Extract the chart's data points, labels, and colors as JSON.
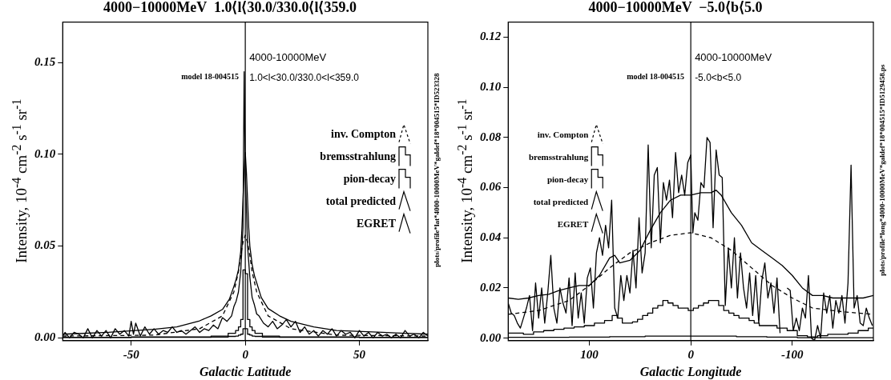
{
  "chart_data": [
    {
      "type": "line",
      "title": "4000−10000MeV  1.0⟨l⟨30.0/330.0⟨l⟨359.0",
      "xlabel": "Galactic Latitude",
      "ylabel": "Intensity, 10$^{-4}$ cm$^{-2}$ s$^{-1}$ sr$^{-1}$",
      "xlim": [
        -80,
        80
      ],
      "xticks": [
        -50,
        0,
        50
      ],
      "ylim": [
        -0.0015,
        0.172
      ],
      "yticks": [
        {
          "value": 0,
          "label": "0.00"
        },
        {
          "value": 0.05,
          "label": "0.05"
        },
        {
          "value": 0.1,
          "label": "0.10"
        },
        {
          "value": 0.15,
          "label": "0.15"
        }
      ],
      "grid": false,
      "legend": "right",
      "marker": "none",
      "ref_lines": [
        {
          "axis": "x",
          "value": 0,
          "label": null
        }
      ],
      "annotations": [
        "4000-10000MeV",
        "1.0<l<30.0/330.0<l<359.0",
        "model 18-004515",
        "plots/profile*lat*4000-10000MeV*galdef*18*004515*ID523328"
      ],
      "series": [
        {
          "name": "inv. Compton",
          "type": "line",
          "line_style": "dashed",
          "color": "#000000",
          "x": [
            -80,
            -40,
            -20,
            -10,
            -5,
            -3,
            -2,
            -1,
            0,
            1,
            2,
            3,
            5,
            10,
            20,
            40,
            80
          ],
          "values": [
            0.001,
            0.0015,
            0.005,
            0.012,
            0.025,
            0.036,
            0.045,
            0.052,
            0.056,
            0.052,
            0.045,
            0.036,
            0.025,
            0.012,
            0.005,
            0.0015,
            0.001
          ]
        },
        {
          "name": "bremsstrahlung",
          "type": "step",
          "color": "#000000",
          "x": [
            -80,
            -20,
            -10,
            -5,
            -3.5,
            -2.5,
            -1.5,
            -0.5,
            0.5,
            1.5,
            2.5,
            3.5,
            5,
            10,
            20,
            80
          ],
          "values": [
            0.0002,
            0.0003,
            0.0004,
            0.0008,
            0.001,
            0.0015,
            0.002,
            0.005,
            0.005,
            0.002,
            0.0015,
            0.001,
            0.0008,
            0.0004,
            0.0003,
            0.0002
          ]
        },
        {
          "name": "pion-decay",
          "type": "step",
          "color": "#000000",
          "x": [
            -80,
            -20,
            -10,
            -5,
            -3.5,
            -2.5,
            -1.5,
            -0.5,
            0.5,
            1.5,
            2.5,
            3.5,
            5,
            10,
            20,
            80
          ],
          "values": [
            0.0003,
            0.0005,
            0.001,
            0.0025,
            0.004,
            0.006,
            0.01,
            0.037,
            0.035,
            0.01,
            0.006,
            0.004,
            0.0025,
            0.001,
            0.0005,
            0.0003
          ]
        },
        {
          "name": "total predicted",
          "type": "line",
          "color": "#000000",
          "x": [
            -80,
            -60,
            -40,
            -30,
            -20,
            -15,
            -10,
            -7,
            -5,
            -4,
            -3,
            -2,
            -1.5,
            -1,
            -0.5,
            0,
            0.5,
            1,
            1.5,
            2,
            3,
            4,
            5,
            7,
            10,
            15,
            20,
            30,
            40,
            60,
            80
          ],
          "values": [
            0.002,
            0.003,
            0.0047,
            0.006,
            0.0093,
            0.012,
            0.0155,
            0.021,
            0.028,
            0.032,
            0.037,
            0.047,
            0.059,
            0.075,
            0.092,
            0.101,
            0.09,
            0.075,
            0.06,
            0.05,
            0.04,
            0.034,
            0.03,
            0.022,
            0.016,
            0.012,
            0.009,
            0.006,
            0.004,
            0.003,
            0.002
          ]
        },
        {
          "name": "EGRET",
          "type": "line",
          "color": "#000000",
          "x": [
            -80,
            -79,
            -77,
            -75,
            -73,
            -71,
            -69,
            -67,
            -65,
            -63,
            -61,
            -59,
            -57,
            -55,
            -53,
            -51,
            -50,
            -49,
            -48,
            -46,
            -44,
            -42,
            -40,
            -38,
            -36,
            -34,
            -32,
            -30,
            -28,
            -26,
            -24,
            -22,
            -20,
            -18,
            -16,
            -14,
            -12,
            -10,
            -8,
            -6,
            -5,
            -4,
            -3,
            -2,
            -1,
            -0.5,
            0,
            0.5,
            1,
            2,
            3,
            4,
            5,
            6,
            8,
            10,
            12,
            14,
            16,
            18,
            20,
            22,
            24,
            26,
            28,
            30,
            32,
            34,
            36,
            38,
            40,
            42,
            44,
            46,
            48,
            50,
            52,
            54,
            56,
            58,
            60,
            62,
            64,
            66,
            68,
            70,
            72,
            74,
            76,
            78,
            80
          ],
          "values": [
            0.001,
            0.003,
            0.0,
            0.003,
            0.002,
            0.0,
            0.005,
            0.0,
            0.004,
            0.001,
            0.004,
            0.0,
            0.005,
            0.002,
            0.004,
            0.001,
            0.009,
            0.002,
            0.008,
            0.001,
            0.006,
            0.002,
            0.005,
            0.002,
            0.004,
            0.003,
            0.006,
            0.003,
            0.004,
            0.002,
            0.004,
            0.006,
            0.003,
            0.005,
            0.004,
            0.007,
            0.005,
            0.011,
            0.009,
            0.012,
            0.017,
            0.02,
            0.025,
            0.036,
            0.06,
            0.145,
            0.09,
            0.07,
            0.05,
            0.033,
            0.022,
            0.018,
            0.013,
            0.012,
            0.008,
            0.006,
            0.009,
            0.005,
            0.007,
            0.01,
            0.006,
            0.009,
            0.003,
            0.006,
            0.002,
            0.004,
            0.001,
            0.004,
            0.002,
            0.005,
            0.001,
            0.004,
            0.002,
            0.003,
            0.0,
            0.004,
            0.001,
            0.003,
            0.0,
            0.003,
            0.001,
            0.002,
            0.0,
            0.002,
            0.0,
            0.004,
            0.001,
            0.002,
            0.0,
            0.003,
            0.001
          ]
        }
      ]
    },
    {
      "type": "line",
      "title": "4000−10000MeV  −5.0⟨b⟨5.0",
      "xlabel": "Galactic Longitude",
      "ylabel": "Intensity, 10$^{-4}$ cm$^{-2}$ s$^{-1}$ sr$^{-1}$",
      "xlim": [
        180,
        -180
      ],
      "xticks": [
        100,
        0,
        -100
      ],
      "ylim": [
        -0.001,
        0.126
      ],
      "yticks": [
        {
          "value": 0,
          "label": "0.00"
        },
        {
          "value": 0.02,
          "label": "0.02"
        },
        {
          "value": 0.04,
          "label": "0.04"
        },
        {
          "value": 0.06,
          "label": "0.06"
        },
        {
          "value": 0.08,
          "label": "0.08"
        },
        {
          "value": 0.1,
          "label": "0.10"
        },
        {
          "value": 0.12,
          "label": "0.12"
        }
      ],
      "grid": false,
      "legend": "top left",
      "marker": "none",
      "ref_lines": [
        {
          "axis": "x",
          "value": 0,
          "label": null
        }
      ],
      "annotations": [
        "4000-10000MeV",
        "-5.0<b<5.0",
        "model 18-004515",
        "plots/profile*long*4000-10000MeV*galdef*18*004515*ID5129458.ps"
      ],
      "series": [
        {
          "name": "inv. Compton",
          "type": "line",
          "line_style": "dashed",
          "color": "#000000",
          "x": [
            180,
            150,
            120,
            100,
            80,
            60,
            40,
            20,
            0,
            -20,
            -40,
            -60,
            -80,
            -100,
            -120,
            -150,
            -180
          ],
          "values": [
            0.0095,
            0.011,
            0.015,
            0.021,
            0.028,
            0.034,
            0.038,
            0.041,
            0.042,
            0.04,
            0.035,
            0.028,
            0.021,
            0.016,
            0.012,
            0.0105,
            0.0095
          ]
        },
        {
          "name": "bremsstrahlung",
          "type": "step",
          "color": "#000000",
          "x": [
            180,
            140,
            100,
            60,
            30,
            0,
            -30,
            -60,
            -90,
            -120,
            -150,
            -180
          ],
          "values": [
            0.0003,
            0.0003,
            0.0004,
            0.0006,
            0.0008,
            0.0008,
            0.0008,
            0.0006,
            0.0004,
            0.0002,
            0.0002,
            0.0002
          ]
        },
        {
          "name": "pion-decay",
          "type": "step",
          "color": "#000000",
          "x": [
            180,
            170,
            160,
            150,
            140,
            130,
            120,
            110,
            100,
            90,
            80,
            75,
            70,
            65,
            60,
            55,
            50,
            45,
            40,
            35,
            30,
            25,
            20,
            15,
            10,
            5,
            0,
            -5,
            -10,
            -15,
            -20,
            -25,
            -30,
            -35,
            -40,
            -45,
            -50,
            -55,
            -60,
            -65,
            -70,
            -80,
            -90,
            -100,
            -110,
            -120,
            -130,
            -140,
            -150,
            -160,
            -170,
            -180
          ],
          "values": [
            0.002,
            0.002,
            0.0015,
            0.0025,
            0.003,
            0.0035,
            0.004,
            0.0045,
            0.005,
            0.006,
            0.007,
            0.009,
            0.008,
            0.006,
            0.006,
            0.0065,
            0.0075,
            0.009,
            0.01,
            0.012,
            0.013,
            0.015,
            0.014,
            0.013,
            0.012,
            0.012,
            0.011,
            0.012,
            0.013,
            0.014,
            0.015,
            0.015,
            0.013,
            0.011,
            0.01,
            0.009,
            0.008,
            0.008,
            0.007,
            0.006,
            0.005,
            0.005,
            0.004,
            0.003,
            0.001,
            0.0005,
            0.001,
            0.0015,
            0.0015,
            0.002,
            0.003,
            0.004
          ]
        },
        {
          "name": "total predicted",
          "type": "line",
          "color": "#000000",
          "x": [
            180,
            170,
            160,
            150,
            140,
            130,
            120,
            110,
            100,
            90,
            80,
            75,
            70,
            60,
            50,
            40,
            30,
            20,
            10,
            0,
            -10,
            -20,
            -25,
            -30,
            -40,
            -50,
            -60,
            -70,
            -80,
            -90,
            -100,
            -110,
            -120,
            -130,
            -140,
            -150,
            -160,
            -170,
            -180
          ],
          "values": [
            0.016,
            0.0155,
            0.016,
            0.017,
            0.0175,
            0.019,
            0.02,
            0.021,
            0.021,
            0.025,
            0.032,
            0.033,
            0.03,
            0.031,
            0.035,
            0.043,
            0.05,
            0.055,
            0.057,
            0.057,
            0.058,
            0.058,
            0.059,
            0.057,
            0.05,
            0.045,
            0.038,
            0.035,
            0.032,
            0.029,
            0.025,
            0.02,
            0.017,
            0.017,
            0.016,
            0.016,
            0.016,
            0.016,
            0.017
          ]
        },
        {
          "name": "EGRET",
          "type": "line",
          "color": "#000000",
          "x": [
            180,
            177,
            174,
            171,
            168,
            165,
            162,
            159,
            156,
            153,
            150,
            147,
            144,
            141,
            138,
            135,
            132,
            129,
            126,
            123,
            120,
            117,
            114,
            111,
            108,
            105,
            102,
            99,
            96,
            93,
            90,
            87,
            84,
            81,
            78,
            75,
            72,
            69,
            66,
            63,
            60,
            57,
            54,
            51,
            48,
            45,
            42,
            39,
            36,
            33,
            30,
            27,
            24,
            21,
            18,
            15,
            12,
            9,
            6,
            3,
            0,
            -2,
            -4,
            -7,
            -10,
            -13,
            -16,
            -19,
            -22,
            -25,
            -28,
            -31,
            -34,
            -37,
            -40,
            -43,
            -46,
            -49,
            -52,
            -55,
            -58,
            -61,
            -64,
            -67,
            -70,
            -73,
            -76,
            -79,
            -82,
            -85,
            -88,
            -91,
            -93,
            -95,
            -98,
            -101,
            -104,
            -107,
            -110,
            -113,
            -116,
            -119,
            -122,
            -125,
            -128,
            -131,
            -134,
            -137,
            -140,
            -143,
            -146,
            -149,
            -152,
            -155,
            -158,
            -161,
            -164,
            -167,
            -170,
            -173,
            -176,
            -179
          ],
          "values": [
            0.014,
            0.01,
            0.009,
            0.006,
            0.004,
            0.008,
            0.012,
            0.017,
            0.003,
            0.022,
            0.008,
            0.02,
            0.006,
            0.018,
            0.033,
            0.012,
            0.006,
            0.02,
            0.014,
            0.01,
            0.024,
            0.005,
            0.026,
            0.008,
            0.018,
            0.006,
            0.024,
            0.028,
            0.012,
            0.034,
            0.04,
            0.033,
            0.045,
            0.036,
            0.055,
            0.012,
            0.008,
            0.025,
            0.015,
            0.025,
            0.018,
            0.035,
            0.02,
            0.048,
            0.026,
            0.034,
            0.077,
            0.036,
            0.065,
            0.068,
            0.038,
            0.062,
            0.055,
            0.063,
            0.048,
            0.074,
            0.058,
            0.065,
            0.057,
            0.07,
            0.073,
            0.042,
            0.05,
            0.047,
            0.062,
            0.06,
            0.08,
            0.078,
            0.044,
            0.075,
            0.065,
            0.064,
            0.013,
            0.036,
            0.02,
            0.04,
            0.016,
            0.034,
            0.02,
            0.012,
            0.026,
            0.009,
            0.025,
            0.006,
            0.023,
            0.03,
            0.016,
            0.022,
            0.01,
            0.024,
            0.002,
            null,
            null,
            0.02,
            0.019,
            0.003,
            0.008,
            0.003,
            0.012,
            0.008,
            0.025,
            0.0,
            -0.001,
            0.005,
            0.0,
            0.018,
            0.01,
            0.017,
            0.004,
            0.015,
            0.01,
            0.017,
            0.006,
            0.022,
            0.069,
            0.012,
            0.017,
            0.006,
            0.005,
            0.012,
            0.008,
            0.005
          ]
        }
      ]
    }
  ]
}
